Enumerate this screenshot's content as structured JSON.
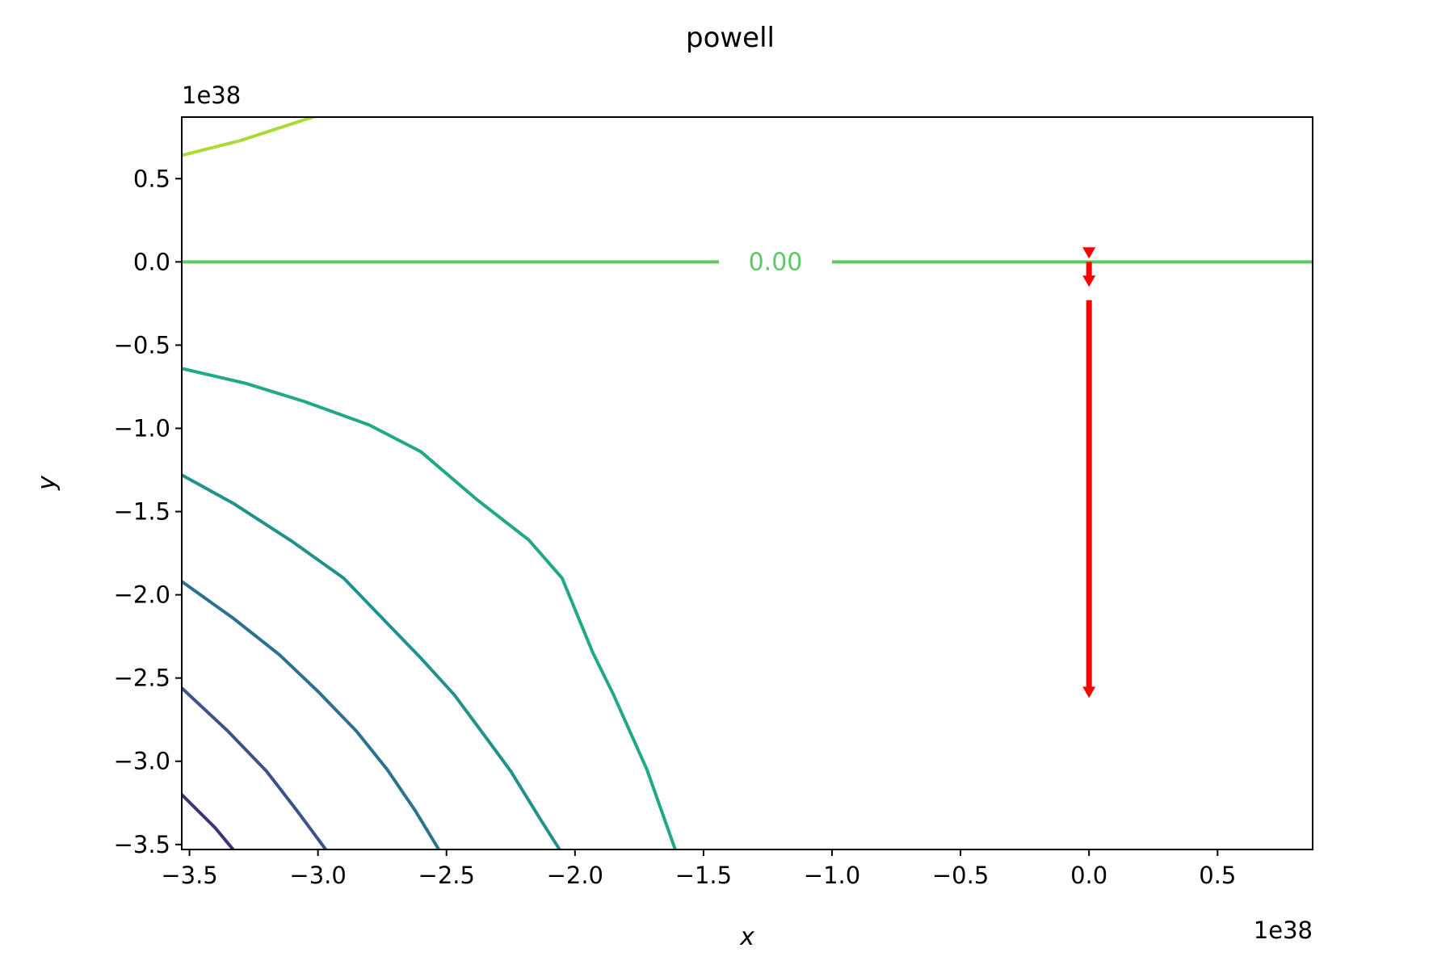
{
  "chart_data": {
    "type": "contour",
    "title": "powell",
    "xlabel": "x",
    "ylabel": "y",
    "x_offset_text": "1e38",
    "y_offset_text": "1e38",
    "xlim": [
      -3.53,
      0.87
    ],
    "ylim": [
      -3.53,
      0.87
    ],
    "x_ticks": [
      -3.5,
      -3.0,
      -2.5,
      -2.0,
      -1.5,
      -1.0,
      -0.5,
      0.0,
      0.5
    ],
    "y_ticks": [
      0.5,
      0.0,
      -0.5,
      -1.0,
      -1.5,
      -2.0,
      -2.5,
      -3.0,
      -3.5
    ],
    "x_tick_labels": [
      "−3.5",
      "−3.0",
      "−2.5",
      "−2.0",
      "−1.5",
      "−1.0",
      "−0.5",
      "0.0",
      "0.5"
    ],
    "y_tick_labels": [
      "0.5",
      "0.0",
      "−0.5",
      "−1.0",
      "−1.5",
      "−2.0",
      "−2.5",
      "−3.0",
      "−3.5"
    ],
    "grid": false,
    "contour_label": "0.00",
    "contours": [
      {
        "color": "#a8db34",
        "points": [
          [
            -3.53,
            0.64
          ],
          [
            -3.3,
            0.73
          ],
          [
            -3.1,
            0.83
          ],
          [
            -3.0,
            0.88
          ]
        ]
      },
      {
        "color": "#5ec962",
        "points": [
          [
            -3.53,
            0.0
          ],
          [
            0.87,
            0.0
          ]
        ],
        "labeled": true,
        "label_x": -1.22
      },
      {
        "color": "#22a884",
        "points": [
          [
            -3.53,
            -0.64
          ],
          [
            -3.28,
            -0.73
          ],
          [
            -3.05,
            -0.84
          ],
          [
            -2.8,
            -0.98
          ],
          [
            -2.6,
            -1.14
          ],
          [
            -2.38,
            -1.43
          ],
          [
            -2.18,
            -1.67
          ],
          [
            -2.05,
            -1.9
          ],
          [
            -1.93,
            -2.35
          ],
          [
            -1.85,
            -2.6
          ],
          [
            -1.72,
            -3.05
          ],
          [
            -1.61,
            -3.53
          ]
        ]
      },
      {
        "color": "#21918c",
        "points": [
          [
            -3.53,
            -1.28
          ],
          [
            -3.33,
            -1.45
          ],
          [
            -3.1,
            -1.68
          ],
          [
            -2.9,
            -1.9
          ],
          [
            -2.75,
            -2.14
          ],
          [
            -2.6,
            -2.38
          ],
          [
            -2.47,
            -2.6
          ],
          [
            -2.35,
            -2.85
          ],
          [
            -2.25,
            -3.06
          ],
          [
            -2.13,
            -3.36
          ],
          [
            -2.06,
            -3.53
          ]
        ]
      },
      {
        "color": "#2c728e",
        "points": [
          [
            -3.53,
            -1.92
          ],
          [
            -3.33,
            -2.14
          ],
          [
            -3.15,
            -2.36
          ],
          [
            -3.0,
            -2.58
          ],
          [
            -2.85,
            -2.82
          ],
          [
            -2.73,
            -3.05
          ],
          [
            -2.62,
            -3.3
          ],
          [
            -2.53,
            -3.53
          ]
        ]
      },
      {
        "color": "#3b528b",
        "points": [
          [
            -3.53,
            -2.56
          ],
          [
            -3.35,
            -2.82
          ],
          [
            -3.2,
            -3.06
          ],
          [
            -3.08,
            -3.3
          ],
          [
            -2.97,
            -3.53
          ]
        ]
      },
      {
        "color": "#472d7b",
        "points": [
          [
            -3.53,
            -3.2
          ],
          [
            -3.4,
            -3.4
          ],
          [
            -3.33,
            -3.53
          ]
        ]
      }
    ],
    "optimizer_path": {
      "color": "#ff0000",
      "segments": [
        {
          "from": [
            0.0,
            0.05
          ],
          "to": [
            0.0,
            0.02
          ]
        },
        {
          "from": [
            0.0,
            0.0
          ],
          "to": [
            0.0,
            -0.15
          ]
        },
        {
          "from": [
            0.0,
            -0.23
          ],
          "to": [
            0.0,
            -2.62
          ]
        }
      ]
    }
  }
}
